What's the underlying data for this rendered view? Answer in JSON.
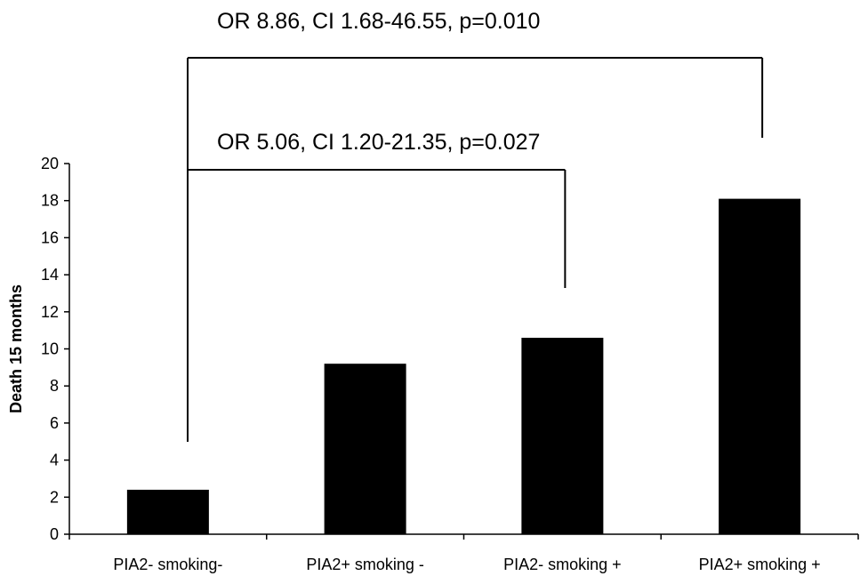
{
  "chart_data": {
    "type": "bar",
    "title": "",
    "xlabel": "",
    "ylabel": "Death 15 months",
    "ylim": [
      0,
      20
    ],
    "yticks": [
      "0",
      "2",
      "4",
      "6",
      "8",
      "10",
      "12",
      "14",
      "16",
      "18",
      "20"
    ],
    "grid": false,
    "legend": "none",
    "categories": [
      "PIA2- smoking-",
      "PIA2+ smoking -",
      "PIA2- smoking +",
      "PIA2+ smoking +"
    ],
    "values": [
      2.4,
      9.2,
      10.6,
      18.1
    ],
    "bar_color": "#000000",
    "annotations": [
      {
        "text": "OR 8.86, CI 1.68-46.55, p=0.010",
        "from_category": 0,
        "to_category": 3
      },
      {
        "text": "OR 5.06, CI 1.20-21.35, p=0.027",
        "from_category": 0,
        "to_category": 2
      }
    ]
  }
}
